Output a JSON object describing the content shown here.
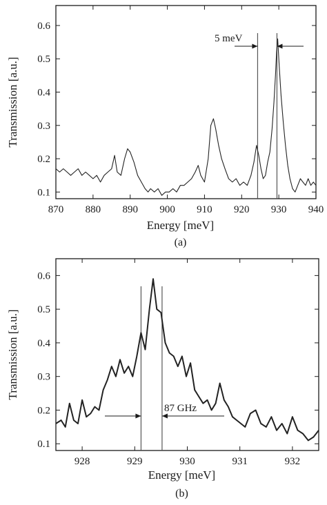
{
  "chart_data": [
    {
      "type": "line",
      "panel_label": "(a)",
      "xlabel": "Energy [meV]",
      "ylabel": "Transmission [a.u.]",
      "xlim": [
        870,
        940
      ],
      "ylim": [
        0.08,
        0.66
      ],
      "x_ticks": [
        "870",
        "880",
        "890",
        "900",
        "910",
        "920",
        "930",
        "940"
      ],
      "y_ticks": [
        "0.1",
        "0.2",
        "0.3",
        "0.4",
        "0.5",
        "0.6"
      ],
      "annotation": "5 meV",
      "markers_x": [
        924.3,
        929.5
      ],
      "series": [
        {
          "x": [
            870,
            871,
            872,
            873,
            874,
            875,
            876,
            877,
            878,
            879,
            880,
            881,
            882,
            883,
            884,
            885,
            885.8,
            886.5,
            887.5,
            888.5,
            889.3,
            890,
            891,
            892,
            893,
            894,
            894.8,
            895.5,
            896.5,
            897.5,
            898.5,
            899.5,
            900.5,
            901.5,
            902.5,
            903.5,
            904.5,
            905.5,
            906.5,
            907.5,
            908.3,
            909,
            910,
            911,
            911.7,
            912.4,
            913,
            913.8,
            914.6,
            915.5,
            916.5,
            917.5,
            918.5,
            919.5,
            920.5,
            921.5,
            922.5,
            923.3,
            924,
            924.6,
            925.2,
            925.8,
            926.4,
            927,
            927.6,
            928.2,
            928.7,
            929.1,
            929.4,
            929.7,
            930.1,
            930.6,
            931.2,
            931.8,
            932.4,
            933,
            933.7,
            934.4,
            935.1,
            935.8,
            936.5,
            937.2,
            937.9,
            938.6,
            939.3,
            940
          ],
          "y": [
            0.17,
            0.16,
            0.17,
            0.16,
            0.15,
            0.16,
            0.17,
            0.15,
            0.16,
            0.15,
            0.14,
            0.15,
            0.13,
            0.15,
            0.16,
            0.17,
            0.21,
            0.16,
            0.15,
            0.2,
            0.23,
            0.22,
            0.19,
            0.15,
            0.13,
            0.11,
            0.1,
            0.11,
            0.1,
            0.11,
            0.09,
            0.1,
            0.1,
            0.11,
            0.1,
            0.12,
            0.12,
            0.13,
            0.14,
            0.16,
            0.18,
            0.15,
            0.13,
            0.2,
            0.3,
            0.32,
            0.29,
            0.24,
            0.2,
            0.17,
            0.14,
            0.13,
            0.14,
            0.12,
            0.13,
            0.12,
            0.15,
            0.19,
            0.24,
            0.21,
            0.17,
            0.14,
            0.15,
            0.19,
            0.22,
            0.29,
            0.37,
            0.45,
            0.52,
            0.56,
            0.48,
            0.39,
            0.31,
            0.24,
            0.18,
            0.14,
            0.11,
            0.1,
            0.12,
            0.14,
            0.13,
            0.12,
            0.14,
            0.12,
            0.13,
            0.12
          ]
        }
      ]
    },
    {
      "type": "line",
      "panel_label": "(b)",
      "xlabel": "Energy [meV]",
      "ylabel": "Transmission [a.u.]",
      "xlim": [
        927.5,
        932.5
      ],
      "ylim": [
        0.08,
        0.65
      ],
      "x_ticks": [
        "928",
        "929",
        "930",
        "931",
        "932"
      ],
      "y_ticks": [
        "0.1",
        "0.2",
        "0.3",
        "0.4",
        "0.5",
        "0.6"
      ],
      "annotation": "87 GHz",
      "markers_x": [
        929.12,
        929.52
      ],
      "series": [
        {
          "x": [
            927.5,
            927.6,
            927.68,
            927.76,
            927.84,
            927.92,
            928.0,
            928.08,
            928.16,
            928.24,
            928.32,
            928.4,
            928.48,
            928.56,
            928.64,
            928.72,
            928.8,
            928.88,
            928.96,
            929.04,
            929.12,
            929.2,
            929.28,
            929.35,
            929.42,
            929.5,
            929.58,
            929.66,
            929.74,
            929.82,
            929.9,
            929.98,
            930.06,
            930.14,
            930.22,
            930.3,
            930.38,
            930.46,
            930.54,
            930.62,
            930.7,
            930.78,
            930.86,
            930.94,
            931.02,
            931.1,
            931.2,
            931.3,
            931.4,
            931.5,
            931.6,
            931.7,
            931.8,
            931.9,
            932.0,
            932.1,
            932.2,
            932.3,
            932.4,
            932.5
          ],
          "y": [
            0.16,
            0.17,
            0.15,
            0.22,
            0.17,
            0.16,
            0.23,
            0.18,
            0.19,
            0.21,
            0.2,
            0.26,
            0.29,
            0.33,
            0.3,
            0.35,
            0.31,
            0.33,
            0.3,
            0.36,
            0.43,
            0.38,
            0.5,
            0.59,
            0.5,
            0.49,
            0.4,
            0.37,
            0.36,
            0.33,
            0.36,
            0.3,
            0.34,
            0.26,
            0.24,
            0.22,
            0.23,
            0.2,
            0.22,
            0.28,
            0.23,
            0.21,
            0.18,
            0.17,
            0.16,
            0.15,
            0.19,
            0.2,
            0.16,
            0.15,
            0.18,
            0.14,
            0.16,
            0.13,
            0.18,
            0.14,
            0.13,
            0.11,
            0.12,
            0.14
          ]
        }
      ]
    }
  ]
}
